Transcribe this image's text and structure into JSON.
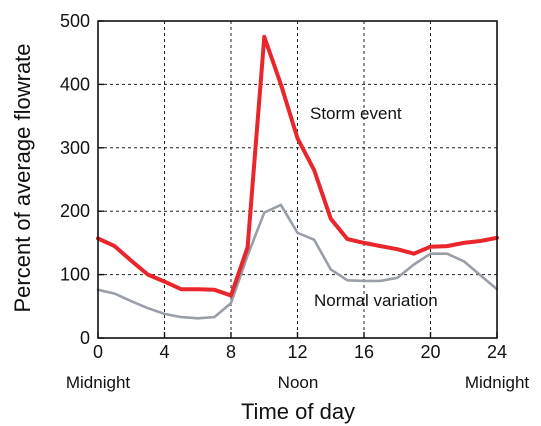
{
  "chart_data": {
    "type": "line",
    "xlabel": "Time of day",
    "ylabel": "Percent of average flowrate",
    "xlim": [
      0,
      24
    ],
    "ylim": [
      0,
      500
    ],
    "xticks": [
      "0",
      "4",
      "8",
      "12",
      "16",
      "20",
      "24"
    ],
    "yticks": [
      "0",
      "100",
      "200",
      "300",
      "400",
      "500"
    ],
    "x_sublabels": [
      "Midnight",
      "Noon",
      "Midnight"
    ],
    "grid": true,
    "annotations": [
      "Storm event",
      "Normal variation"
    ],
    "series": [
      {
        "name": "Storm event",
        "color": "#e8262b",
        "x": [
          0,
          1,
          2,
          3,
          4,
          5,
          6,
          7,
          8,
          9,
          10,
          11,
          12,
          13,
          14,
          15,
          16,
          17,
          18,
          19,
          20,
          21,
          22,
          23,
          24
        ],
        "y": [
          157,
          145,
          122,
          100,
          89,
          77,
          77,
          76,
          67,
          143,
          475,
          400,
          315,
          265,
          188,
          156,
          150,
          145,
          140,
          133,
          144,
          145,
          150,
          153,
          158
        ]
      },
      {
        "name": "Normal variation",
        "color": "#999fa8",
        "x": [
          0,
          1,
          2,
          3,
          4,
          5,
          6,
          7,
          8,
          9,
          10,
          11,
          12,
          13,
          14,
          15,
          16,
          17,
          18,
          19,
          20,
          21,
          22,
          23,
          24
        ],
        "y": [
          76,
          70,
          58,
          47,
          38,
          33,
          31,
          33,
          55,
          130,
          198,
          210,
          166,
          155,
          108,
          91,
          90,
          90,
          95,
          116,
          133,
          133,
          121,
          99,
          77
        ]
      }
    ]
  }
}
